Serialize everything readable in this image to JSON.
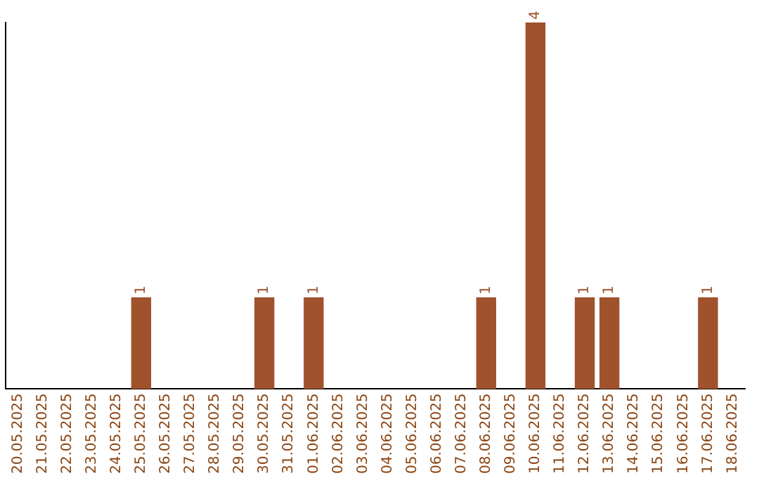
{
  "chart_data": {
    "type": "bar",
    "categories": [
      "20.05.2025",
      "21.05.2025",
      "22.05.2025",
      "23.05.2025",
      "24.05.2025",
      "25.05.2025",
      "26.05.2025",
      "27.05.2025",
      "28.05.2025",
      "29.05.2025",
      "30.05.2025",
      "31.05.2025",
      "01.06.2025",
      "02.06.2025",
      "03.06.2025",
      "04.06.2025",
      "05.06.2025",
      "06.06.2025",
      "07.06.2025",
      "08.06.2025",
      "09.06.2025",
      "10.06.2025",
      "11.06.2025",
      "12.06.2025",
      "13.06.2025",
      "14.06.2025",
      "15.06.2025",
      "16.06.2025",
      "17.06.2025",
      "18.06.2025"
    ],
    "values": [
      0,
      0,
      0,
      0,
      0,
      1,
      0,
      0,
      0,
      0,
      1,
      0,
      1,
      0,
      0,
      0,
      0,
      0,
      0,
      1,
      0,
      4,
      0,
      1,
      1,
      0,
      0,
      0,
      1,
      0
    ],
    "value_labels": [
      null,
      null,
      null,
      null,
      null,
      "1",
      null,
      null,
      null,
      null,
      "1",
      null,
      "1",
      null,
      null,
      null,
      null,
      null,
      null,
      "1",
      null,
      "4",
      null,
      "1",
      "1",
      null,
      null,
      null,
      "1",
      null
    ],
    "color": "#a0522d",
    "grid": false,
    "tick_labels": "x"
  }
}
